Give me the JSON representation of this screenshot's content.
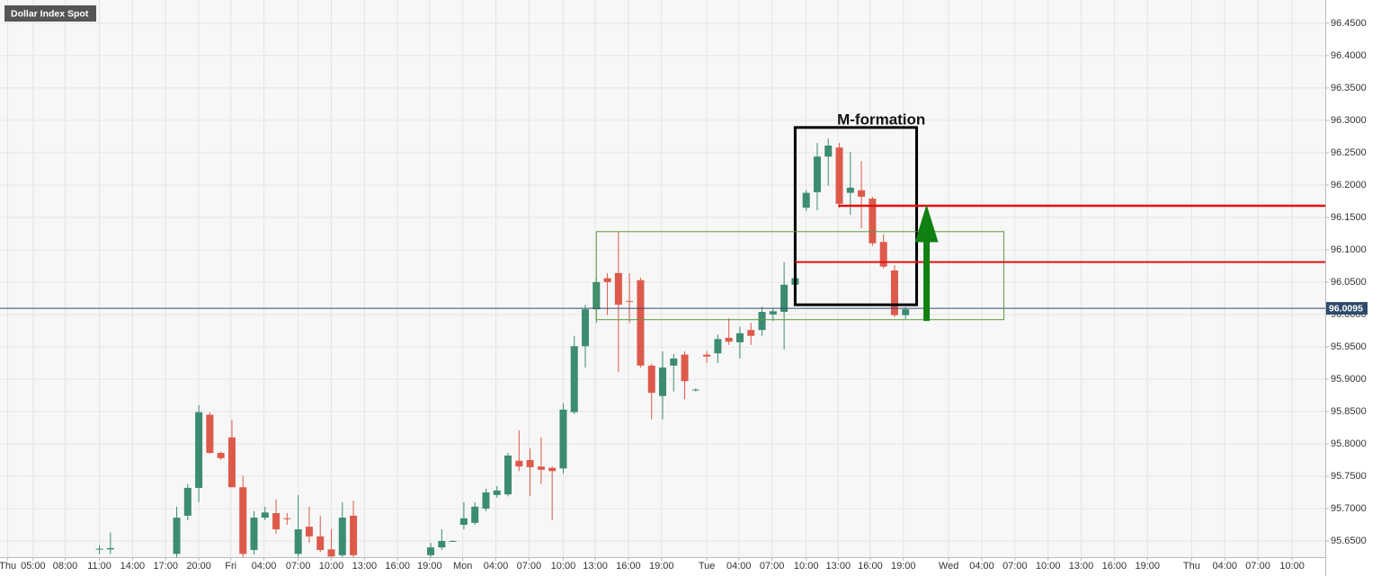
{
  "chart_data": {
    "type": "candlestick",
    "title": "Dollar Index Spot",
    "x": [
      9,
      10,
      16,
      17,
      18,
      19,
      20,
      21,
      22,
      23,
      24,
      25,
      26,
      27,
      28,
      29,
      30,
      31,
      32,
      39,
      40,
      41,
      42,
      43,
      44,
      45,
      46,
      47,
      48,
      49,
      50,
      51,
      52,
      53,
      54,
      55,
      56,
      57,
      58,
      59,
      60,
      61,
      62,
      63,
      64,
      65,
      66,
      67,
      68,
      69,
      70,
      71,
      72,
      73,
      74,
      75,
      76,
      77,
      78,
      79,
      80,
      81,
      82
    ],
    "open": [
      95.637,
      95.637,
      95.63,
      95.689,
      95.732,
      95.845,
      95.786,
      95.81,
      95.733,
      95.636,
      95.686,
      95.693,
      95.685,
      95.63,
      95.672,
      95.657,
      95.637,
      95.628,
      95.689,
      95.628,
      95.64,
      95.65,
      95.675,
      95.678,
      95.7,
      95.721,
      95.722,
      95.774,
      95.775,
      95.765,
      95.763,
      95.762,
      95.849,
      95.951,
      96.008,
      96.056,
      96.064,
      96.021,
      96.053,
      95.921,
      95.874,
      95.921,
      95.938,
      95.883,
      95.938,
      95.94,
      95.964,
      95.957,
      95.976,
      95.976,
      96.0,
      96.004,
      96.046,
      96.165,
      96.189,
      96.244,
      96.258,
      96.188,
      96.192,
      96.179,
      96.112,
      96.068,
      95.999
    ],
    "high": [
      95.643,
      95.663,
      95.703,
      95.738,
      95.86,
      95.849,
      95.788,
      95.837,
      95.751,
      95.696,
      95.703,
      95.714,
      95.693,
      95.721,
      95.703,
      95.689,
      95.668,
      95.71,
      95.712,
      95.647,
      95.668,
      95.651,
      95.71,
      95.71,
      95.731,
      95.735,
      95.786,
      95.821,
      95.793,
      95.81,
      95.765,
      95.863,
      95.967,
      96.015,
      96.057,
      96.064,
      96.129,
      96.064,
      96.057,
      95.924,
      95.943,
      95.939,
      95.943,
      95.886,
      95.943,
      95.969,
      95.994,
      95.981,
      95.987,
      96.012,
      96.01,
      96.081,
      96.06,
      96.192,
      96.265,
      96.272,
      96.265,
      96.251,
      96.237,
      96.182,
      96.124,
      96.076,
      96.012
    ],
    "low": [
      95.63,
      95.63,
      95.62,
      95.682,
      95.71,
      95.785,
      95.775,
      95.733,
      95.62,
      95.629,
      95.682,
      95.661,
      95.675,
      95.62,
      95.647,
      95.633,
      95.62,
      95.62,
      95.62,
      95.62,
      95.636,
      95.649,
      95.668,
      95.675,
      95.696,
      95.717,
      95.719,
      95.758,
      95.719,
      95.738,
      95.682,
      95.754,
      95.846,
      95.918,
      95.987,
      95.999,
      95.911,
      95.987,
      95.918,
      95.838,
      95.838,
      95.881,
      95.869,
      95.881,
      95.925,
      95.925,
      95.953,
      95.932,
      95.953,
      95.967,
      95.99,
      95.946,
      96.036,
      96.16,
      96.161,
      96.199,
      96.165,
      96.154,
      96.133,
      96.106,
      96.071,
      95.996,
      95.993
    ],
    "close": [
      95.638,
      95.639,
      95.686,
      95.732,
      95.849,
      95.786,
      95.778,
      95.733,
      95.63,
      95.686,
      95.694,
      95.668,
      95.684,
      95.668,
      95.657,
      95.636,
      95.626,
      95.686,
      95.628,
      95.64,
      95.65,
      95.65,
      95.685,
      95.703,
      95.725,
      95.728,
      95.782,
      95.765,
      95.764,
      95.76,
      95.758,
      95.853,
      95.951,
      96.008,
      96.05,
      96.05,
      96.015,
      96.02,
      95.921,
      95.879,
      95.918,
      95.932,
      95.897,
      95.884,
      95.935,
      95.962,
      95.958,
      95.971,
      95.967,
      96.004,
      96.005,
      96.046,
      96.056,
      96.188,
      96.244,
      96.261,
      96.171,
      96.196,
      96.182,
      96.11,
      96.074,
      95.999,
      96.008
    ],
    "up_color": "#3c8c73",
    "down_color": "#dd5a4b",
    "xlim": [
      0,
      120
    ],
    "ylim": [
      95.625,
      96.486
    ],
    "xticks": [
      {
        "value": 0.7,
        "label": "Thu"
      },
      {
        "value": 3.0,
        "label": "05:00"
      },
      {
        "value": 5.9,
        "label": "08:00"
      },
      {
        "value": 9.0,
        "label": "11:00"
      },
      {
        "value": 12.0,
        "label": "14:00"
      },
      {
        "value": 15.0,
        "label": "17:00"
      },
      {
        "value": 18.0,
        "label": "20:00"
      },
      {
        "value": 20.9,
        "label": "Fri"
      },
      {
        "value": 23.9,
        "label": "04:00"
      },
      {
        "value": 27.0,
        "label": "07:00"
      },
      {
        "value": 30.0,
        "label": "10:00"
      },
      {
        "value": 33.0,
        "label": "13:00"
      },
      {
        "value": 36.0,
        "label": "16:00"
      },
      {
        "value": 38.9,
        "label": "19:00"
      },
      {
        "value": 41.9,
        "label": "Mon"
      },
      {
        "value": 44.9,
        "label": "04:00"
      },
      {
        "value": 47.9,
        "label": "07:00"
      },
      {
        "value": 51.0,
        "label": "10:00"
      },
      {
        "value": 53.9,
        "label": "13:00"
      },
      {
        "value": 56.9,
        "label": "16:00"
      },
      {
        "value": 59.9,
        "label": "19:00"
      },
      {
        "value": 64.0,
        "label": "Tue"
      },
      {
        "value": 66.9,
        "label": "04:00"
      },
      {
        "value": 69.9,
        "label": "07:00"
      },
      {
        "value": 73.0,
        "label": "10:00"
      },
      {
        "value": 75.9,
        "label": "13:00"
      },
      {
        "value": 78.8,
        "label": "16:00"
      },
      {
        "value": 81.8,
        "label": "19:00"
      },
      {
        "value": 85.9,
        "label": "Wed"
      },
      {
        "value": 88.9,
        "label": "04:00"
      },
      {
        "value": 91.9,
        "label": "07:00"
      },
      {
        "value": 94.9,
        "label": "10:00"
      },
      {
        "value": 97.9,
        "label": "13:00"
      },
      {
        "value": 100.9,
        "label": "16:00"
      },
      {
        "value": 103.9,
        "label": "19:00"
      },
      {
        "value": 107.9,
        "label": "Thu"
      },
      {
        "value": 110.9,
        "label": "04:00"
      },
      {
        "value": 113.9,
        "label": "07:00"
      },
      {
        "value": 117.0,
        "label": "10:00"
      }
    ],
    "yticks": [
      {
        "value": 95.65,
        "label": "95.6500"
      },
      {
        "value": 95.7,
        "label": "95.7000"
      },
      {
        "value": 95.75,
        "label": "95.7500"
      },
      {
        "value": 95.8,
        "label": "95.8000"
      },
      {
        "value": 95.85,
        "label": "95.8500"
      },
      {
        "value": 95.9,
        "label": "95.9000"
      },
      {
        "value": 95.95,
        "label": "95.9500"
      },
      {
        "value": 96.0,
        "label": "96.0000"
      },
      {
        "value": 96.05,
        "label": "96.0500"
      },
      {
        "value": 96.1,
        "label": "96.1000"
      },
      {
        "value": 96.15,
        "label": "96.1500"
      },
      {
        "value": 96.2,
        "label": "96.2000"
      },
      {
        "value": 96.25,
        "label": "96.2500"
      },
      {
        "value": 96.3,
        "label": "96.3000"
      },
      {
        "value": 96.35,
        "label": "96.3500"
      },
      {
        "value": 96.4,
        "label": "96.4000"
      },
      {
        "value": 96.45,
        "label": "96.4500"
      }
    ],
    "grid": true,
    "last_price": {
      "value": 96.0095,
      "label": "96.0095",
      "color": "#2f4a6b"
    },
    "annotations": {
      "label": {
        "text": "M-formation",
        "x": 79.8,
        "y": 96.3
      },
      "boxes": [
        {
          "x0": 72.0,
          "x1": 83.0,
          "y0": 96.015,
          "y1": 96.289,
          "color": "#000000"
        },
        {
          "x0": 54.0,
          "x1": 90.9,
          "y0": 95.992,
          "y1": 96.128,
          "color": "#5a9a3a"
        }
      ],
      "levels": [
        {
          "x0": 75.9,
          "value": 96.168,
          "color": "#e31010"
        },
        {
          "x0": 72.0,
          "value": 96.081,
          "color": "#e31010"
        }
      ],
      "arrow": {
        "x": 83.9,
        "from": 95.99,
        "to": 96.17,
        "color": "#108010"
      }
    }
  }
}
